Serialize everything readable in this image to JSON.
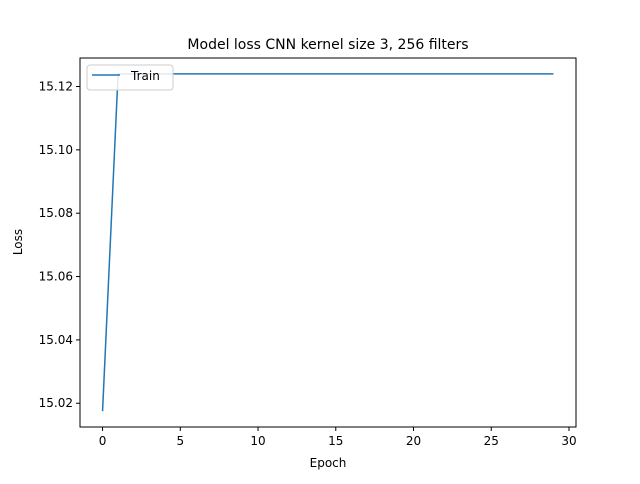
{
  "chart_data": {
    "type": "line",
    "title": "Model loss CNN kernel size 3, 256 filters",
    "xlabel": "Epoch",
    "ylabel": "Loss",
    "xlim": [
      -1.45,
      30.45
    ],
    "ylim": [
      15.0125,
      15.129
    ],
    "xticks": [
      0,
      5,
      10,
      15,
      20,
      25,
      30
    ],
    "yticks": [
      15.02,
      15.04,
      15.06,
      15.08,
      15.1,
      15.12
    ],
    "grid": false,
    "legend_position": "top-left",
    "series": [
      {
        "name": "Train",
        "color": "#1f77b4",
        "x": [
          0,
          1,
          2,
          3,
          4,
          5,
          6,
          7,
          8,
          9,
          10,
          11,
          12,
          13,
          14,
          15,
          16,
          17,
          18,
          19,
          20,
          21,
          22,
          23,
          24,
          25,
          26,
          27,
          28,
          29
        ],
        "y": [
          15.0175,
          15.124,
          15.124,
          15.124,
          15.124,
          15.124,
          15.124,
          15.124,
          15.124,
          15.124,
          15.124,
          15.124,
          15.124,
          15.124,
          15.124,
          15.124,
          15.124,
          15.124,
          15.124,
          15.124,
          15.124,
          15.124,
          15.124,
          15.124,
          15.124,
          15.124,
          15.124,
          15.124,
          15.124,
          15.124
        ]
      }
    ]
  }
}
